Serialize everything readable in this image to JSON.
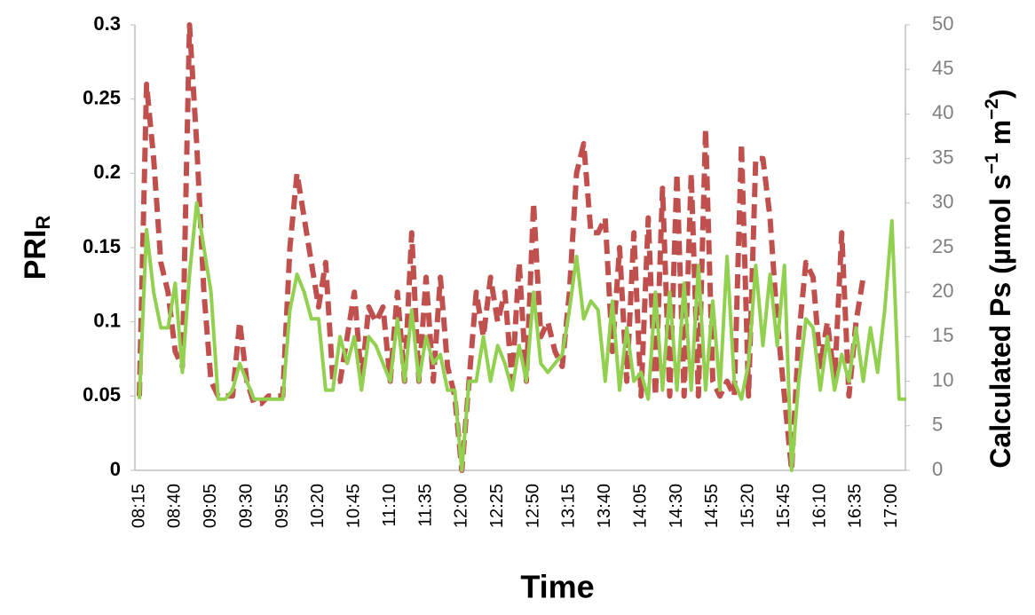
{
  "chart_data": {
    "type": "line",
    "x_label": "Time",
    "y_label": "PRI",
    "y_label_subscript": "R",
    "y2_label_parts": [
      "Calculated Ps (µmol s",
      "−1",
      " m",
      "−2",
      ")"
    ],
    "categories": [
      "08:15",
      null,
      null,
      null,
      null,
      "08:40",
      null,
      null,
      null,
      null,
      "09:05",
      null,
      null,
      null,
      null,
      "09:30",
      null,
      null,
      null,
      null,
      "09:55",
      null,
      null,
      null,
      null,
      "10:20",
      null,
      null,
      null,
      null,
      "10:45",
      null,
      null,
      null,
      null,
      "11:10",
      null,
      null,
      null,
      null,
      "11:35",
      null,
      null,
      null,
      null,
      "12:00",
      null,
      null,
      null,
      null,
      "12:25",
      null,
      null,
      null,
      null,
      "12:50",
      null,
      null,
      null,
      null,
      "13:15",
      null,
      null,
      null,
      null,
      "13:40",
      null,
      null,
      null,
      null,
      "14:05",
      null,
      null,
      null,
      null,
      "14:30",
      null,
      null,
      null,
      null,
      "14:55",
      null,
      null,
      null,
      null,
      "15:20",
      null,
      null,
      null,
      null,
      "15:45",
      null,
      null,
      null,
      null,
      "16:10",
      null,
      null,
      null,
      null,
      "16:35",
      null,
      null,
      null,
      null,
      "17:00",
      null,
      null
    ],
    "ylim": [
      0,
      0.3
    ],
    "yticks": [
      0,
      0.05,
      0.1,
      0.15,
      0.2,
      0.25,
      0.3
    ],
    "y2lim": [
      0,
      50
    ],
    "y2ticks": [
      0,
      5,
      10,
      15,
      20,
      25,
      30,
      35,
      40,
      45,
      50
    ],
    "series": [
      {
        "color": "#c0504d",
        "dashed": true,
        "values": [
          0.05,
          0.26,
          0.21,
          0.14,
          0.12,
          0.08,
          0.07,
          0.3,
          0.22,
          0.12,
          0.06,
          0.05,
          0.05,
          0.05,
          0.1,
          0.06,
          0.045,
          0.045,
          0.05,
          0.05,
          0.05,
          0.15,
          0.2,
          0.17,
          0.14,
          0.11,
          0.14,
          0.06,
          0.06,
          0.09,
          0.12,
          0.06,
          0.11,
          0.1,
          0.11,
          0.06,
          0.12,
          0.06,
          0.16,
          0.06,
          0.13,
          0.06,
          0.13,
          0.07,
          0.05,
          0,
          0.06,
          0.12,
          0.09,
          0.13,
          0.1,
          0.12,
          0.06,
          0.14,
          0.06,
          0.18,
          0.09,
          0.1,
          0.08,
          0.07,
          0.12,
          0.2,
          0.22,
          0.16,
          0.16,
          0.17,
          0.08,
          0.15,
          0.06,
          0.16,
          0.05,
          0.17,
          0.05,
          0.19,
          0.05,
          0.2,
          0.05,
          0.2,
          0.05,
          0.23,
          0.06,
          0.05,
          0.06,
          0.05,
          0.22,
          0.05,
          0.21,
          0.21,
          0.17,
          0.1,
          0.05,
          0,
          0.09,
          0.14,
          0.13,
          0.07,
          0.1,
          0.06,
          0.16,
          0.05,
          0.1,
          0.13,
          null,
          null,
          null,
          null,
          null,
          null
        ]
      },
      {
        "color": "#92d050",
        "axis": "y2",
        "values": [
          8,
          27,
          20,
          16,
          16,
          21,
          11,
          22,
          30,
          25,
          20,
          8,
          8,
          9,
          12,
          10,
          8,
          8,
          8,
          8,
          8,
          18,
          22,
          20,
          17,
          17,
          9,
          9,
          15,
          12,
          15,
          9,
          15,
          14,
          12,
          10,
          17,
          10,
          18,
          10,
          15,
          12,
          13,
          9,
          9,
          0,
          10,
          10,
          15,
          10,
          14,
          12,
          9,
          14,
          10,
          20,
          12,
          11,
          12,
          13,
          18,
          24,
          17,
          19,
          18,
          10,
          19,
          9,
          16,
          10,
          11,
          8,
          20,
          9,
          20,
          9,
          21,
          9,
          23,
          9,
          19,
          9,
          24,
          10,
          8,
          12,
          23,
          14,
          22,
          14,
          23,
          0,
          10,
          17,
          16,
          9,
          15,
          9,
          13,
          10,
          16,
          10,
          16,
          11,
          18,
          28,
          8,
          8
        ]
      }
    ]
  }
}
